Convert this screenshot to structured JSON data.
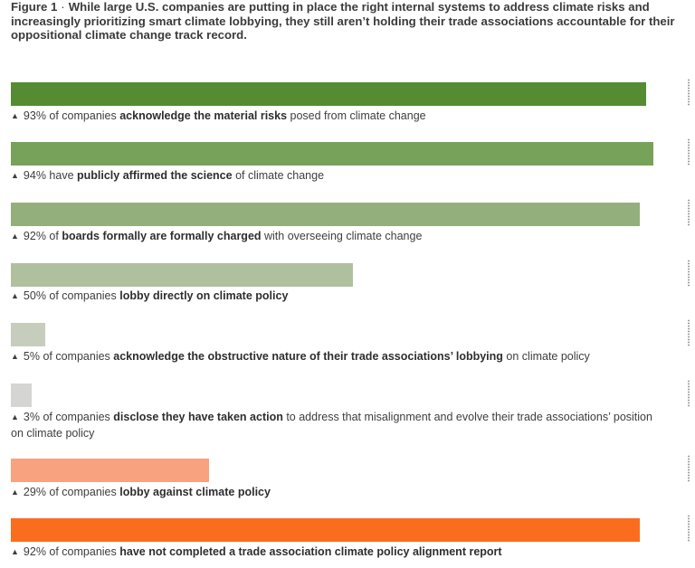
{
  "figure": {
    "label": "Figure 1",
    "separator": "·",
    "title": "While large U.S. companies are putting in place the right internal systems to address climate risks and increasingly prioritizing smart climate lobbying, they still aren’t holding their trade associations accountable for their oppositional climate change track record."
  },
  "chart_data": {
    "type": "bar",
    "orientation": "horizontal",
    "unit": "%",
    "xlim": [
      0,
      100
    ],
    "marker_symbol": "▲",
    "items": [
      {
        "value": 93,
        "color": "#548b33",
        "parts": [
          {
            "t": "93% of companies ",
            "b": false
          },
          {
            "t": "acknowledge the material risks",
            "b": true
          },
          {
            "t": " posed from climate change",
            "b": false
          }
        ]
      },
      {
        "value": 94,
        "color": "#76a259",
        "parts": [
          {
            "t": "94% have ",
            "b": false
          },
          {
            "t": "publicly affirmed the science",
            "b": true
          },
          {
            "t": " of climate change",
            "b": false
          }
        ]
      },
      {
        "value": 92,
        "color": "#93af7c",
        "parts": [
          {
            "t": "92% of ",
            "b": false
          },
          {
            "t": "boards formally are formally charged",
            "b": true
          },
          {
            "t": " with overseeing climate change",
            "b": false
          }
        ]
      },
      {
        "value": 50,
        "color": "#b0c09f",
        "parts": [
          {
            "t": "50% of companies ",
            "b": false
          },
          {
            "t": "lobby directly on climate policy",
            "b": true
          }
        ]
      },
      {
        "value": 5,
        "color": "#c6cdbc",
        "parts": [
          {
            "t": "5% of companies ",
            "b": false
          },
          {
            "t": "acknowledge the obstructive nature of their trade associations’ lobbying",
            "b": true
          },
          {
            "t": " on climate policy",
            "b": false
          }
        ]
      },
      {
        "value": 3,
        "color": "#d5d5d3",
        "parts": [
          {
            "t": "3% of companies ",
            "b": false
          },
          {
            "t": "disclose they have taken action",
            "b": true
          },
          {
            "t": " to address that misalignment and evolve their trade associations’ position on climate policy",
            "b": false
          }
        ]
      },
      {
        "value": 29,
        "color": "#f9a280",
        "parts": [
          {
            "t": "29% of companies ",
            "b": false
          },
          {
            "t": "lobby against climate policy",
            "b": true
          }
        ]
      },
      {
        "value": 92,
        "color": "#fa6d1f",
        "parts": [
          {
            "t": "92% of companies ",
            "b": false
          },
          {
            "t": "have not completed a trade association climate policy alignment report",
            "b": true
          }
        ]
      }
    ]
  }
}
